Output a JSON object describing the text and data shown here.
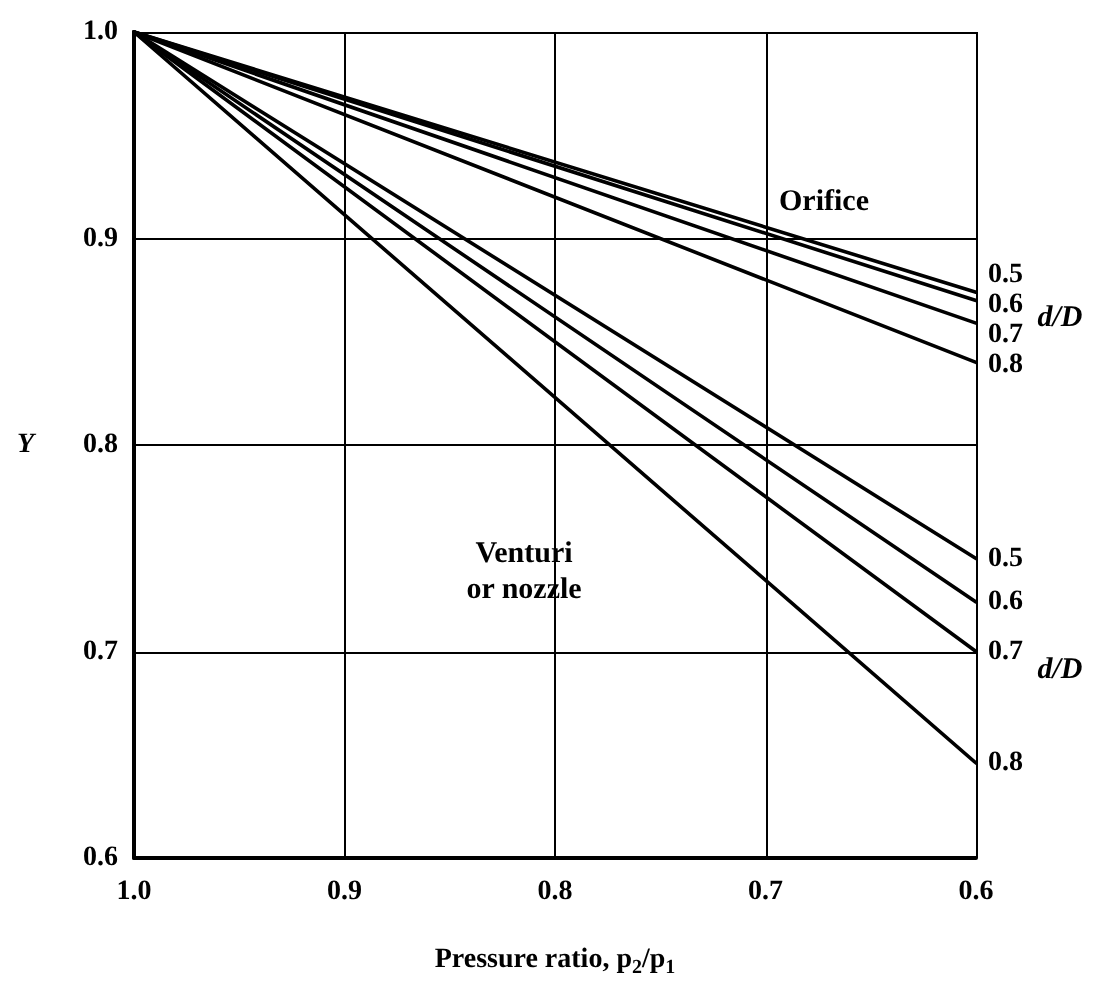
{
  "chart_data": {
    "type": "line",
    "xlabel": "Pressure ratio, p$_{2}$/p$_{1}$",
    "ylabel": "Y",
    "annotations": [
      "Orifice",
      "Venturi\nor nozzle",
      "d/D",
      "d/D"
    ],
    "xlim": [
      1.0,
      0.6
    ],
    "ylim": [
      0.6,
      1.0
    ],
    "xticks": [
      {
        "value": 1.0,
        "label": "1.0"
      },
      {
        "value": 0.9,
        "label": "0.9"
      },
      {
        "value": 0.8,
        "label": "0.8"
      },
      {
        "value": 0.7,
        "label": "0.7"
      },
      {
        "value": 0.6,
        "label": "0.6"
      }
    ],
    "yticks": [
      {
        "value": 0.6,
        "label": "0.6"
      },
      {
        "value": 0.7,
        "label": "0.7"
      },
      {
        "value": 0.8,
        "label": "0.8"
      },
      {
        "value": 0.9,
        "label": "0.9"
      },
      {
        "value": 1.0,
        "label": "1.0"
      }
    ],
    "grid": true,
    "marker": "none",
    "line_style": "solid",
    "x": [
      1.0,
      0.6
    ],
    "series": [
      {
        "name": "0.5",
        "color": "#000000",
        "values": [
          1.0,
          0.874
        ]
      },
      {
        "name": "0.6",
        "color": "#000000",
        "values": [
          1.0,
          0.87
        ]
      },
      {
        "name": "0.7",
        "color": "#000000",
        "values": [
          1.0,
          0.859
        ]
      },
      {
        "name": "0.8",
        "color": "#000000",
        "values": [
          1.0,
          0.84
        ]
      },
      {
        "name": "0.5",
        "color": "#000000",
        "values": [
          1.0,
          0.745
        ]
      },
      {
        "name": "0.6",
        "color": "#000000",
        "values": [
          1.0,
          0.724
        ]
      },
      {
        "name": "0.7",
        "color": "#000000",
        "values": [
          1.0,
          0.7
        ]
      },
      {
        "name": "0.8",
        "color": "#000000",
        "values": [
          1.0,
          0.646
        ]
      }
    ]
  }
}
